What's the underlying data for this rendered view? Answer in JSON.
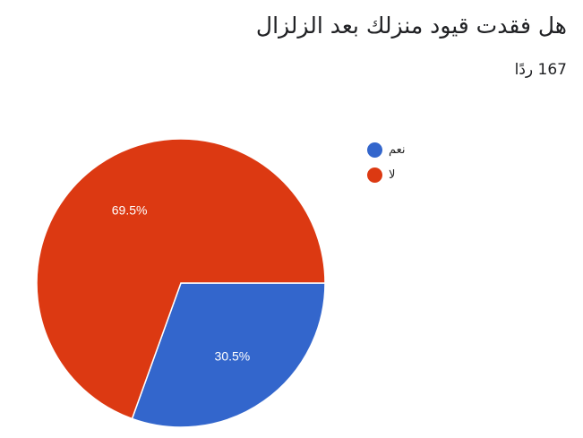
{
  "title": "هل فقدت قيود منزلك بعد الزلزال",
  "responses": "167 ردًا",
  "chart_data": {
    "type": "pie",
    "categories": [
      "نعم",
      "لا"
    ],
    "values": [
      30.5,
      69.5
    ],
    "labels": [
      "30.5%",
      "69.5%"
    ],
    "colors": [
      "#3366cc",
      "#dc3912"
    ],
    "legend_position": "right"
  }
}
